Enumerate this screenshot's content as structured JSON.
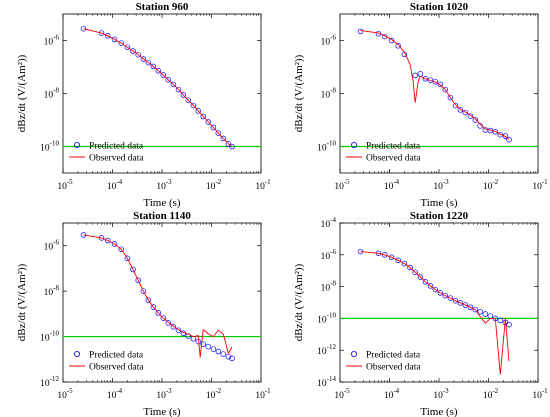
{
  "colors": {
    "observed": "#ff0000",
    "predicted": "#0000ff",
    "threshold": "#00cc00",
    "axes": "#000000"
  },
  "chart_data": [
    {
      "type": "scatter",
      "title": "Station 960",
      "xlabel": "Time (s)",
      "ylabel": "dBz/dt (V/(Am²))",
      "xscale": "log",
      "yscale": "log",
      "xlim": [
        1e-05,
        0.1
      ],
      "ylim": [
        1e-11,
        1e-05
      ],
      "xticks": [
        1e-05,
        0.0001,
        0.001,
        0.01,
        0.1
      ],
      "yticks": [
        1e-10,
        1e-08,
        1e-06
      ],
      "grid": false,
      "legend_position": "bottom-left",
      "threshold": 1e-10,
      "series": [
        {
          "name": "Predicted data",
          "style": "circles",
          "x": [
            2.6e-05,
            6e-05,
            8e-05,
            0.00011,
            0.00015,
            0.0002,
            0.00026,
            0.00033,
            0.00042,
            0.00053,
            0.00067,
            0.00084,
            0.00106,
            0.00134,
            0.0017,
            0.00215,
            0.0027,
            0.0034,
            0.0043,
            0.0054,
            0.0068,
            0.0086,
            0.0109,
            0.0137,
            0.0173,
            0.022,
            0.026
          ],
          "y": [
            2.8e-06,
            1.9e-06,
            1.5e-06,
            1.1e-06,
            8e-07,
            5.6e-07,
            4e-07,
            2.9e-07,
            2e-07,
            1.45e-07,
            1.05e-07,
            7.2e-08,
            5e-08,
            3.3e-08,
            2.2e-08,
            1.4e-08,
            8.8e-09,
            5.6e-09,
            3.5e-09,
            2.2e-09,
            1.36e-09,
            8.4e-10,
            5.2e-10,
            3.2e-10,
            2e-10,
            1.25e-10,
            1e-10
          ]
        },
        {
          "name": "Observed data",
          "style": "line",
          "x": [
            2.6e-05,
            6e-05,
            8e-05,
            0.00011,
            0.00015,
            0.0002,
            0.00026,
            0.00033,
            0.00042,
            0.00053,
            0.00067,
            0.00084,
            0.00106,
            0.00134,
            0.0017,
            0.00215,
            0.0027,
            0.0034,
            0.0043,
            0.0054,
            0.0068,
            0.0086,
            0.0109,
            0.0137,
            0.0173,
            0.022,
            0.026
          ],
          "y": [
            2.8e-06,
            1.9e-06,
            1.5e-06,
            1.1e-06,
            8e-07,
            5.6e-07,
            4e-07,
            2.9e-07,
            2e-07,
            1.45e-07,
            1.05e-07,
            7.2e-08,
            5e-08,
            3.3e-08,
            2.2e-08,
            1.4e-08,
            8.8e-09,
            5.6e-09,
            3.5e-09,
            2.2e-09,
            1.36e-09,
            8.4e-10,
            5.2e-10,
            3.2e-10,
            2e-10,
            1.25e-10,
            1e-10
          ]
        }
      ]
    },
    {
      "type": "scatter",
      "title": "Station 1020",
      "xlabel": "Time (s)",
      "ylabel": "dBz/dt (V/(Am²))",
      "xscale": "log",
      "yscale": "log",
      "xlim": [
        1e-05,
        0.1
      ],
      "ylim": [
        1e-11,
        1e-05
      ],
      "xticks": [
        1e-05,
        0.0001,
        0.001,
        0.01,
        0.1
      ],
      "yticks": [
        1e-10,
        1e-08,
        1e-06
      ],
      "grid": false,
      "legend_position": "bottom-left",
      "threshold": 1e-10,
      "series": [
        {
          "name": "Predicted data",
          "style": "circles",
          "x": [
            2.6e-05,
            6e-05,
            8e-05,
            0.00011,
            0.00015,
            0.0002,
            0.00033,
            0.00042,
            0.00053,
            0.00067,
            0.00084,
            0.00106,
            0.00134,
            0.0017,
            0.00215,
            0.0027,
            0.0034,
            0.0043,
            0.0054,
            0.0068,
            0.0086,
            0.0109,
            0.0137,
            0.0173,
            0.022,
            0.026
          ],
          "y": [
            2.2e-06,
            1.8e-06,
            1.4e-06,
            1e-06,
            6.3e-07,
            3e-07,
            4.8e-08,
            5.5e-08,
            3.6e-08,
            3.2e-08,
            2.8e-08,
            2.2e-08,
            1.4e-08,
            7e-09,
            3.5e-09,
            2.4e-09,
            1.9e-09,
            1.4e-09,
            1e-09,
            6e-10,
            4.2e-10,
            4e-10,
            3.6e-10,
            2.8e-10,
            2.5e-10,
            1.8e-10
          ]
        },
        {
          "name": "Observed data",
          "style": "line",
          "x": [
            2.6e-05,
            6e-05,
            8e-05,
            0.00011,
            0.00015,
            0.0002,
            0.00026,
            0.0003,
            0.00033,
            0.00038,
            0.00042,
            0.00053,
            0.00067,
            0.00084,
            0.00106,
            0.00134,
            0.0017,
            0.00215,
            0.0027,
            0.0034,
            0.0043,
            0.0054,
            0.0068,
            0.0086,
            0.0109,
            0.0137,
            0.0173,
            0.022,
            0.026
          ],
          "y": [
            2.4e-06,
            1.9e-06,
            1.5e-06,
            1.1e-06,
            7e-07,
            3.6e-07,
            1.3e-07,
            3e-08,
            4.5e-09,
            3e-08,
            4.5e-08,
            3.6e-08,
            3.1e-08,
            2.7e-08,
            2.1e-08,
            1.4e-08,
            7e-09,
            3.8e-09,
            2.5e-09,
            2e-09,
            1.5e-09,
            1.1e-09,
            7e-10,
            4.6e-10,
            4.2e-10,
            3.7e-10,
            2.9e-10,
            2.4e-10,
            1.8e-10
          ]
        }
      ]
    },
    {
      "type": "scatter",
      "title": "Station 1140",
      "xlabel": "Time (s)",
      "ylabel": "dBz/dt (V/(Am²))",
      "xscale": "log",
      "yscale": "log",
      "xlim": [
        1e-05,
        0.1
      ],
      "ylim": [
        1e-12,
        1e-05
      ],
      "xticks": [
        1e-05,
        0.0001,
        0.001,
        0.01,
        0.1
      ],
      "yticks": [
        1e-12,
        1e-10,
        1e-08,
        1e-06
      ],
      "grid": false,
      "legend_position": "bottom-left",
      "threshold": 1e-10,
      "series": [
        {
          "name": "Predicted data",
          "style": "circles",
          "x": [
            2.6e-05,
            6e-05,
            8e-05,
            0.00011,
            0.00015,
            0.0002,
            0.00026,
            0.00033,
            0.00042,
            0.00053,
            0.00067,
            0.00084,
            0.00106,
            0.00134,
            0.0017,
            0.00215,
            0.0027,
            0.0034,
            0.0043,
            0.0054,
            0.0068,
            0.0086,
            0.0109,
            0.0137,
            0.0173,
            0.022,
            0.026
          ],
          "y": [
            3e-06,
            2.2e-06,
            1.7e-06,
            1.2e-06,
            7e-07,
            2.8e-07,
            9e-08,
            3e-08,
            1e-08,
            4e-09,
            2e-09,
            1.1e-09,
            6.5e-10,
            4e-10,
            2.7e-10,
            1.9e-10,
            1.4e-10,
            1.05e-10,
            8e-11,
            6e-11,
            4.6e-11,
            3.6e-11,
            2.8e-11,
            2.2e-11,
            1.7e-11,
            1.3e-11,
            1.1e-11
          ]
        },
        {
          "name": "Observed data",
          "style": "line",
          "x": [
            2.6e-05,
            6e-05,
            8e-05,
            0.00011,
            0.00015,
            0.0002,
            0.00026,
            0.00033,
            0.00042,
            0.00053,
            0.00067,
            0.00084,
            0.00106,
            0.00134,
            0.0017,
            0.00215,
            0.0027,
            0.0034,
            0.0043,
            0.0054,
            0.0059,
            0.0068,
            0.0078,
            0.0086,
            0.0109,
            0.0137,
            0.0173,
            0.022,
            0.026
          ],
          "y": [
            3e-06,
            2.2e-06,
            1.7e-06,
            1.2e-06,
            7e-07,
            2.8e-07,
            9e-08,
            3e-08,
            1e-08,
            4e-09,
            2e-09,
            1.1e-09,
            6.5e-10,
            4.2e-10,
            2.9e-10,
            2e-10,
            1.5e-10,
            1.3e-10,
            1e-10,
            1.1e-10,
            1.2e-11,
            2e-10,
            1.6e-10,
            1.3e-10,
            1e-10,
            1.9e-10,
            1.3e-10,
            1.8e-11,
            3.5e-11
          ]
        }
      ]
    },
    {
      "type": "scatter",
      "title": "Station 1220",
      "xlabel": "Time (s)",
      "ylabel": "dBz/dt (V/(Am²))",
      "xscale": "log",
      "yscale": "log",
      "xlim": [
        1e-05,
        0.1
      ],
      "ylim": [
        1e-14,
        0.0001
      ],
      "xticks": [
        1e-05,
        0.0001,
        0.001,
        0.01,
        0.1
      ],
      "yticks": [
        1e-14,
        1e-12,
        1e-10,
        1e-08,
        1e-06,
        0.0001
      ],
      "grid": false,
      "legend_position": "bottom-left",
      "threshold": 1e-10,
      "series": [
        {
          "name": "Predicted data",
          "style": "circles",
          "x": [
            2.6e-05,
            6e-05,
            8e-05,
            0.00011,
            0.00015,
            0.0002,
            0.00026,
            0.00033,
            0.00042,
            0.00053,
            0.00067,
            0.00084,
            0.00106,
            0.00134,
            0.0017,
            0.00215,
            0.0027,
            0.0034,
            0.0043,
            0.0054,
            0.0068,
            0.0086,
            0.0109,
            0.0137,
            0.0173,
            0.022,
            0.026
          ],
          "y": [
            1.6e-06,
            1.25e-06,
            1e-06,
            7e-07,
            4.5e-07,
            2.8e-07,
            1.6e-07,
            8e-08,
            4e-08,
            2e-08,
            1.1e-08,
            6.5e-09,
            4e-09,
            2.7e-09,
            1.9e-09,
            1.3e-09,
            9.5e-10,
            7e-10,
            5e-10,
            3.6e-10,
            2.6e-10,
            1.9e-10,
            1.4e-10,
            1e-10,
            7.5e-11,
            5.5e-11,
            4e-11
          ]
        },
        {
          "name": "Observed data",
          "style": "line",
          "x": [
            2.6e-05,
            6e-05,
            8e-05,
            0.00011,
            0.00015,
            0.0002,
            0.00026,
            0.00033,
            0.00042,
            0.00053,
            0.00067,
            0.00084,
            0.00106,
            0.00134,
            0.0017,
            0.00215,
            0.0027,
            0.0034,
            0.0043,
            0.0054,
            0.0068,
            0.0086,
            0.0109,
            0.0137,
            0.0173,
            0.022,
            0.026
          ],
          "y": [
            1.6e-06,
            1.25e-06,
            1e-06,
            7e-07,
            4.5e-07,
            2.8e-07,
            1.6e-07,
            8e-08,
            4e-08,
            2e-08,
            1.1e-08,
            6.5e-09,
            4e-09,
            2.7e-09,
            1.9e-09,
            1.3e-09,
            9.5e-10,
            7e-10,
            5e-10,
            3.6e-10,
            1.3e-10,
            5e-11,
            1e-10,
            1e-10,
            3e-14,
            1e-10,
            2e-13
          ]
        }
      ]
    }
  ]
}
